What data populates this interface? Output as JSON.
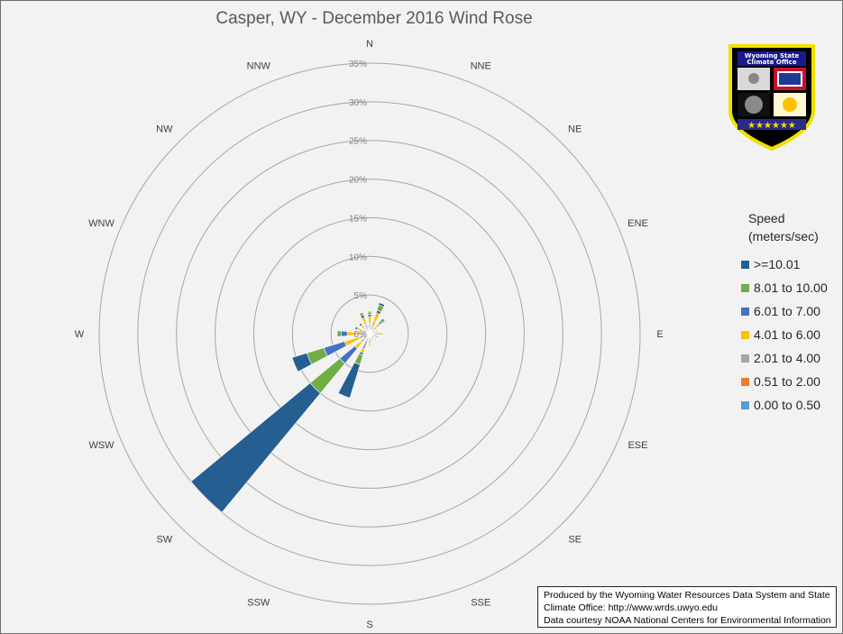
{
  "title": "Casper, WY - December 2016 Wind Rose",
  "colors": {
    "background": "#f2f2f2",
    "grid": "#a6a6a6",
    "bins": [
      "#5b9bd5",
      "#ed7d31",
      "#a5a5a5",
      "#ffc000",
      "#4472c4",
      "#70ad47",
      "#255e91"
    ]
  },
  "legend": {
    "title_line1": "Speed",
    "title_line2": "(meters/sec)",
    "items": [
      {
        "label": ">=10.01",
        "color": "#255e91"
      },
      {
        "label": "8.01 to 10.00",
        "color": "#70ad47"
      },
      {
        "label": "6.01 to 7.00",
        "color": "#4472c4"
      },
      {
        "label": "4.01 to 6.00",
        "color": "#ffc000"
      },
      {
        "label": "2.01 to 4.00",
        "color": "#a5a5a5"
      },
      {
        "label": "0.51 to 2.00",
        "color": "#ed7d31"
      },
      {
        "label": "0.00 to 0.50",
        "color": "#5b9bd5"
      }
    ]
  },
  "logo": {
    "line1": "Wyoming State",
    "line2": "Climate Office"
  },
  "credits": {
    "line1": "Produced by the Wyoming Water Resources Data System and State",
    "line2": "Climate Office: http://www.wrds.uwyo.edu",
    "line3": "Data courtesy NOAA National Centers for Environmental Information"
  },
  "chart_data": {
    "type": "wind_rose",
    "title": "Casper, WY - December 2016 Wind Rose",
    "radial_axis": {
      "min": 0,
      "max": 35,
      "step": 5,
      "unit": "%",
      "tick_labels": [
        "0%",
        "5%",
        "10%",
        "15%",
        "20%",
        "25%",
        "30%",
        "35%"
      ]
    },
    "directions": [
      "N",
      "NNE",
      "NE",
      "ENE",
      "E",
      "ESE",
      "SE",
      "SSE",
      "S",
      "SSW",
      "SW",
      "WSW",
      "W",
      "WNW",
      "NW",
      "NNW"
    ],
    "series_order": [
      "0.00 to 0.50",
      "0.51 to 2.00",
      "2.01 to 4.00",
      "4.01 to 6.00",
      "6.01 to 7.00",
      "8.01 to 10.00",
      ">=10.01"
    ],
    "values": {
      "N": [
        0.1,
        0.4,
        0.8,
        0.9,
        0.3,
        0.3,
        0.1
      ],
      "NNE": [
        0.1,
        0.4,
        1.2,
        1.1,
        0.4,
        0.7,
        0.3
      ],
      "NE": [
        0.1,
        0.3,
        0.8,
        0.6,
        0.3,
        0.5,
        0.0
      ],
      "ENE": [
        0.1,
        0.2,
        0.5,
        0.3,
        0.0,
        0.0,
        0.0
      ],
      "E": [
        0.1,
        0.4,
        0.8,
        0.4,
        0.0,
        0.0,
        0.0
      ],
      "ESE": [
        0.1,
        0.3,
        0.8,
        0.0,
        0.0,
        0.0,
        0.0
      ],
      "SE": [
        0.1,
        0.3,
        0.5,
        0.3,
        0.0,
        0.0,
        0.0
      ],
      "SSE": [
        0.1,
        0.3,
        0.6,
        0.0,
        0.0,
        0.0,
        0.0
      ],
      "S": [
        0.1,
        0.4,
        0.8,
        0.3,
        0.0,
        0.0,
        0.0
      ],
      "SSW": [
        0.1,
        0.5,
        1.5,
        0.5,
        0.3,
        1.3,
        4.5
      ],
      "SW": [
        0.1,
        0.4,
        1.0,
        1.0,
        2.5,
        5.0,
        20.0
      ],
      "WSW": [
        0.1,
        0.3,
        1.0,
        2.0,
        2.8,
        2.3,
        2.0
      ],
      "W": [
        0.1,
        0.3,
        0.8,
        1.7,
        0.8,
        0.5,
        0.0
      ],
      "WNW": [
        0.1,
        0.3,
        0.7,
        0.6,
        0.3,
        0.0,
        0.0
      ],
      "NW": [
        0.1,
        0.3,
        0.6,
        0.5,
        0.3,
        0.0,
        0.0
      ],
      "NNW": [
        0.1,
        0.4,
        0.8,
        0.9,
        0.4,
        0.3,
        0.0
      ]
    },
    "grid": true,
    "legend_position": "right"
  }
}
